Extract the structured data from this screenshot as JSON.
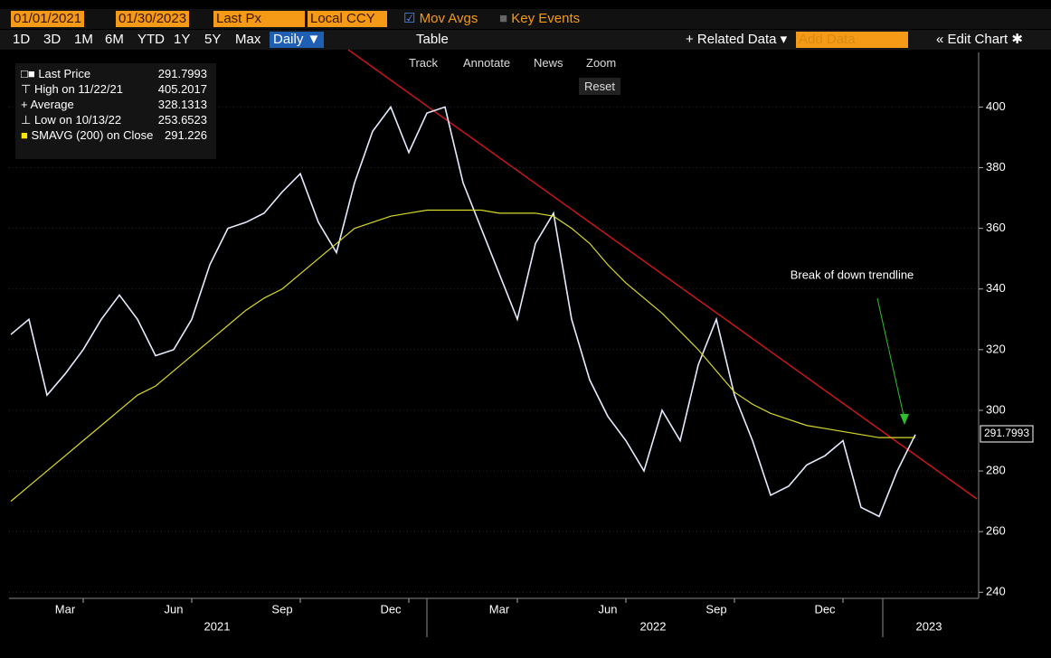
{
  "toolbar": {
    "start_date": "01/01/2021",
    "end_date": "01/30/2023",
    "field": "Last Px",
    "currency": "Local CCY",
    "mov_avgs": "Mov Avgs",
    "key_events": "Key Events",
    "periods": [
      "1D",
      "3D",
      "1M",
      "6M",
      "YTD",
      "1Y",
      "5Y",
      "Max"
    ],
    "frequency": "Daily ▼",
    "table": "Table",
    "related_data": "+ Related Data ▾",
    "add_data": "Add Data",
    "edit_chart": "« Edit Chart ✱",
    "tools": [
      "Track",
      "Annotate",
      "News",
      "Zoom"
    ],
    "reset": "Reset"
  },
  "chart_data": {
    "type": "line",
    "categories": [
      null,
      null,
      null,
      null,
      "Mar",
      null,
      null,
      null,
      null,
      null,
      "Jun",
      null,
      null,
      null,
      null,
      null,
      "Sep",
      null,
      null,
      null,
      null,
      null,
      "Dec",
      null,
      null,
      null,
      null,
      null,
      "Mar",
      null,
      null,
      null,
      null,
      null,
      "Jun",
      null,
      null,
      null,
      null,
      null,
      "Sep",
      null,
      null,
      null,
      null,
      null,
      "Dec",
      null,
      null,
      null,
      null
    ],
    "years": [
      "2021",
      "2022",
      "2023"
    ],
    "series": [
      {
        "name": "Last Price",
        "color": "#e6ecff",
        "values": [
          325,
          330,
          305,
          312,
          320,
          330,
          338,
          330,
          318,
          320,
          330,
          348,
          360,
          362,
          365,
          372,
          378,
          362,
          352,
          375,
          392,
          400,
          385,
          398,
          400,
          375,
          360,
          345,
          330,
          355,
          365,
          330,
          310,
          298,
          290,
          280,
          300,
          290,
          315,
          330,
          305,
          290,
          272,
          275,
          282,
          285,
          290,
          268,
          265,
          280,
          292
        ]
      },
      {
        "name": "SMAVG (200)  on Close",
        "color": "#d9d92a",
        "values": [
          270,
          275,
          280,
          285,
          290,
          295,
          300,
          305,
          308,
          313,
          318,
          323,
          328,
          333,
          337,
          340,
          345,
          350,
          355,
          360,
          362,
          364,
          365,
          366,
          366,
          366,
          366,
          365,
          365,
          365,
          364,
          360,
          355,
          348,
          342,
          337,
          332,
          326,
          320,
          313,
          306,
          302,
          299,
          297,
          295,
          294,
          293,
          292,
          291,
          291,
          291
        ]
      }
    ],
    "stats": {
      "last": 291.7993,
      "high_label": "High on 11/22/21",
      "high": 405.2017,
      "average_label": "Average",
      "average": 328.1313,
      "low_label": "Low on 10/13/22",
      "low": 253.6523,
      "sma": 291.226
    },
    "annotations": [
      "Break of down trendline"
    ],
    "ylim": [
      238,
      418
    ],
    "yticks": [
      240,
      260,
      280,
      300,
      320,
      340,
      360,
      380,
      400
    ]
  }
}
